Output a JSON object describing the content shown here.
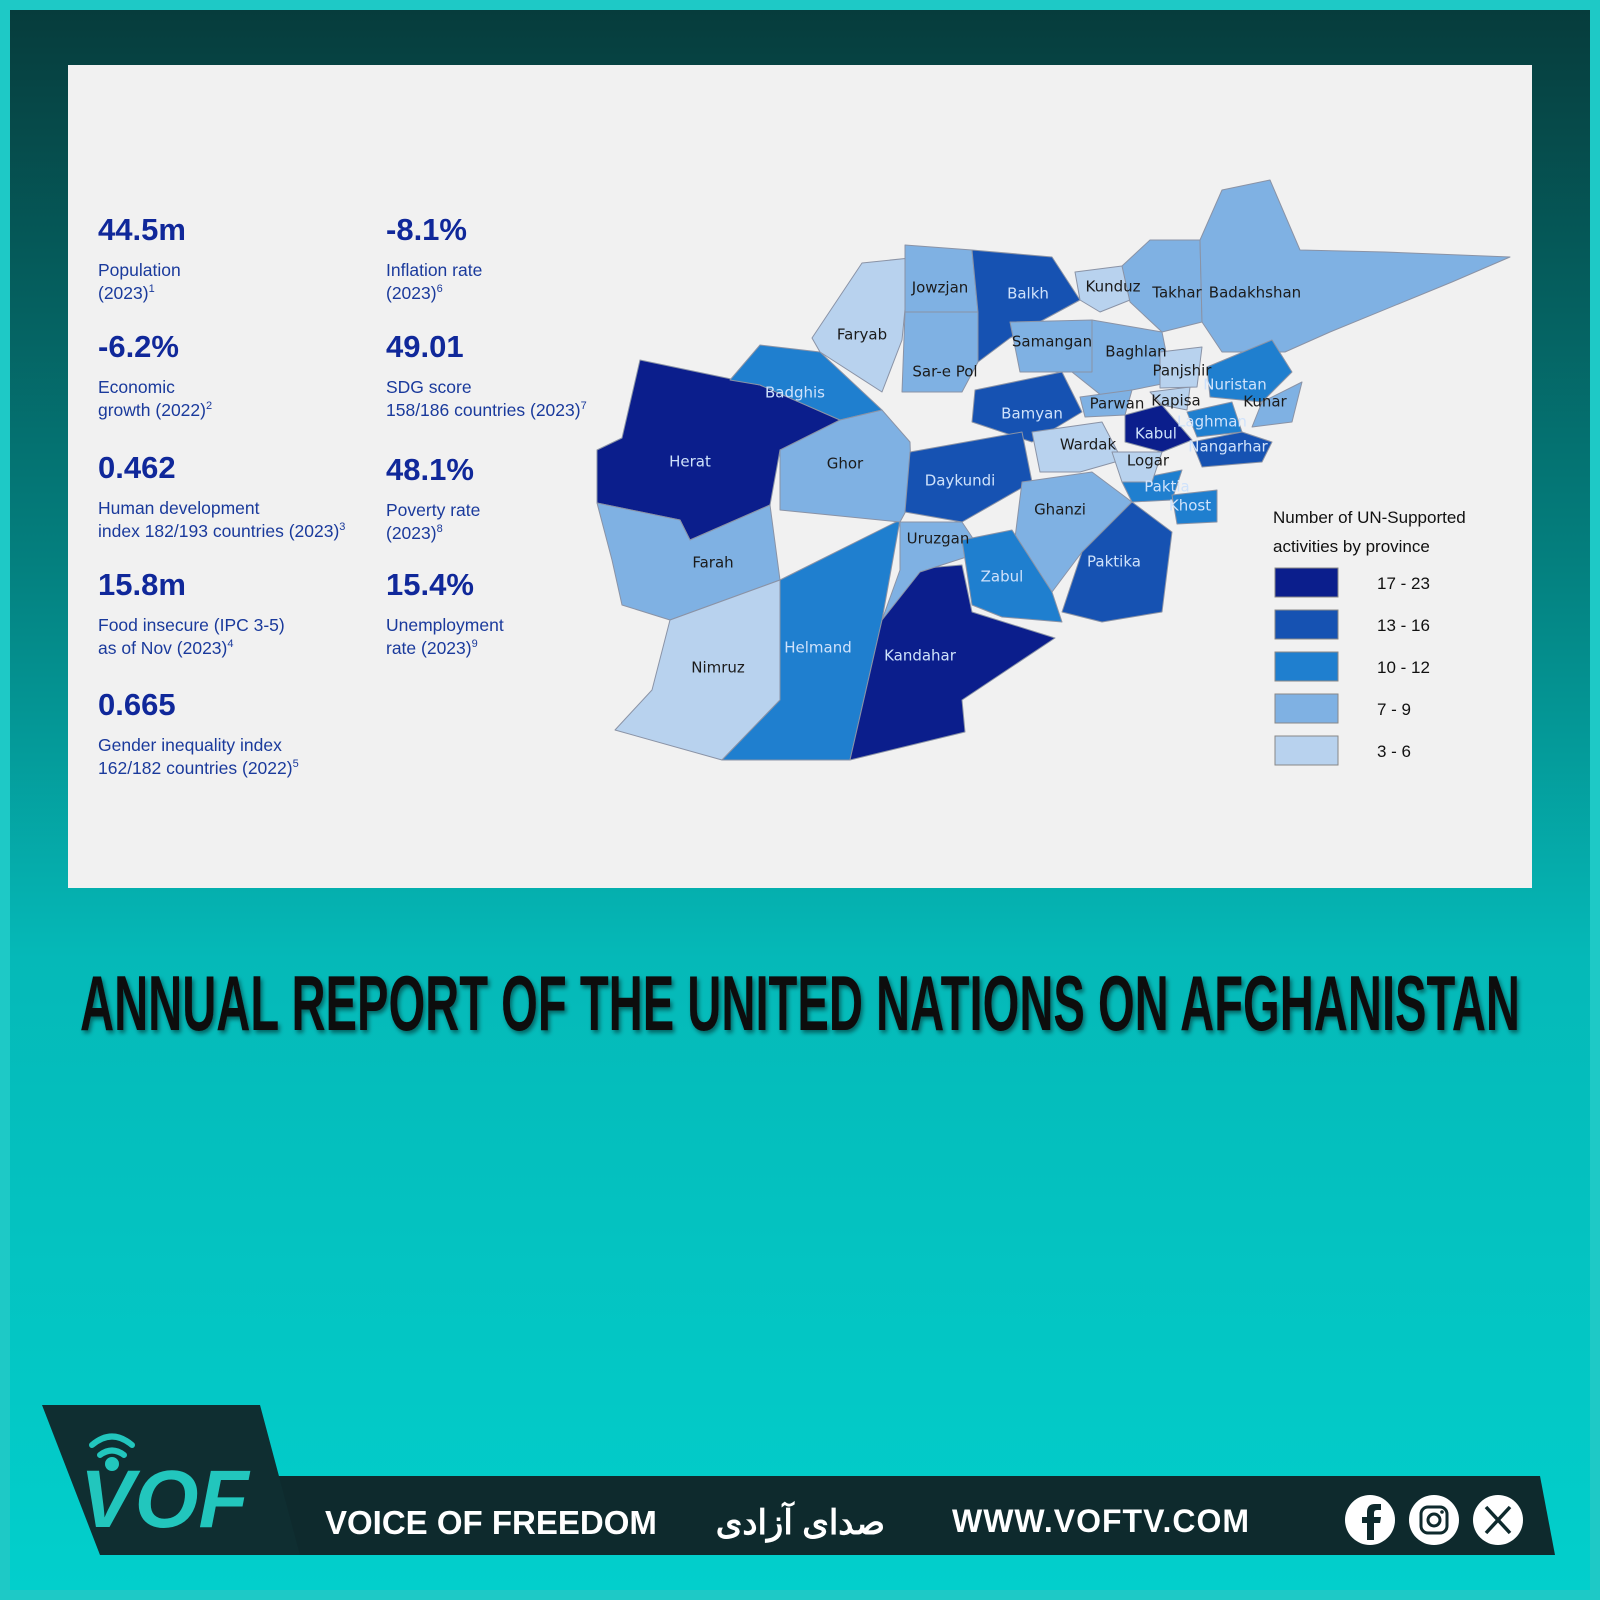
{
  "stats": [
    {
      "value": "44.5m",
      "lines": [
        "Population",
        "(2023)"
      ],
      "note": "1"
    },
    {
      "value": "-6.2%",
      "lines": [
        "Economic",
        "growth (2022)"
      ],
      "note": "2"
    },
    {
      "value": "0.462",
      "lines": [
        "Human development",
        "index 182/193 countries (2023)"
      ],
      "note": "3"
    },
    {
      "value": "15.8m",
      "lines": [
        "Food insecure (IPC 3-5)",
        "as of Nov (2023)"
      ],
      "note": "4"
    },
    {
      "value": "0.665",
      "lines": [
        "Gender inequality index",
        "162/182 countries (2022)"
      ],
      "note": "5"
    },
    {
      "value": "-8.1%",
      "lines": [
        "Inflation rate",
        "(2023)"
      ],
      "note": "6"
    },
    {
      "value": "49.01",
      "lines": [
        "SDG score",
        "158/186 countries (2023)"
      ],
      "note": "7"
    },
    {
      "value": "48.1%",
      "lines": [
        "Poverty rate",
        "(2023)"
      ],
      "note": "8"
    },
    {
      "value": "15.4%",
      "lines": [
        "Unemployment",
        "rate (2023)"
      ],
      "note": "9"
    }
  ],
  "map": {
    "provinces": [
      {
        "name": "Herat",
        "range": "17 - 23"
      },
      {
        "name": "Farah",
        "range": "7 - 9"
      },
      {
        "name": "Nimruz",
        "range": "3 - 6"
      },
      {
        "name": "Helmand",
        "range": "10 - 12"
      },
      {
        "name": "Kandahar",
        "range": "17 - 23"
      },
      {
        "name": "Badghis",
        "range": "10 - 12"
      },
      {
        "name": "Faryab",
        "range": "3 - 6"
      },
      {
        "name": "Ghor",
        "range": "7 - 9"
      },
      {
        "name": "Jowzjan",
        "range": "7 - 9"
      },
      {
        "name": "Balkh",
        "range": "13 - 16"
      },
      {
        "name": "Sar-e Pol",
        "range": "7 - 9"
      },
      {
        "name": "Samangan",
        "range": "7 - 9"
      },
      {
        "name": "Kunduz",
        "range": "3 - 6"
      },
      {
        "name": "Takhar",
        "range": "7 - 9"
      },
      {
        "name": "Badakhshan",
        "range": "7 - 9"
      },
      {
        "name": "Baghlan",
        "range": "7 - 9"
      },
      {
        "name": "Bamyan",
        "range": "13 - 16"
      },
      {
        "name": "Daykundi",
        "range": "13 - 16"
      },
      {
        "name": "Uruzgan",
        "range": "7 - 9"
      },
      {
        "name": "Wardak",
        "range": "3 - 6"
      },
      {
        "name": "Ghanzi",
        "range": "7 - 9"
      },
      {
        "name": "Zabul",
        "range": "10 - 12"
      },
      {
        "name": "Paktika",
        "range": "13 - 16"
      },
      {
        "name": "Paktia",
        "range": "10 - 12"
      },
      {
        "name": "Khost",
        "range": "10 - 12"
      },
      {
        "name": "Logar",
        "range": "3 - 6"
      },
      {
        "name": "Kabul",
        "range": "17 - 23"
      },
      {
        "name": "Parwan",
        "range": "7 - 9"
      },
      {
        "name": "Kapisa",
        "range": "3 - 6"
      },
      {
        "name": "Panjshir",
        "range": "3 - 6"
      },
      {
        "name": "Nuristan",
        "range": "10 - 12"
      },
      {
        "name": "Kunar",
        "range": "7 - 9"
      },
      {
        "name": "Laghman",
        "range": "10 - 12"
      },
      {
        "name": "Nangarhar",
        "range": "13 - 16"
      }
    ],
    "legend": {
      "title_lines": [
        "Number of UN-Supported",
        "activities by province"
      ],
      "classes": [
        {
          "label": "17 - 23",
          "color": "#0b1e8c"
        },
        {
          "label": "13 - 16",
          "color": "#1652b2"
        },
        {
          "label": "10 - 12",
          "color": "#1f7fcf"
        },
        {
          "label": "7 - 9",
          "color": "#7fb1e3"
        },
        {
          "label": "3 - 6",
          "color": "#b8d2ee"
        }
      ]
    }
  },
  "headline": "ANNUAL REPORT OF THE UNITED NATIONS ON AFGHANISTAN",
  "footer": {
    "brand": "VOF",
    "name": "VOICE OF FREEDOM",
    "name_fa": "صدای آزادی",
    "url": "WWW.VOFTV.COM"
  }
}
